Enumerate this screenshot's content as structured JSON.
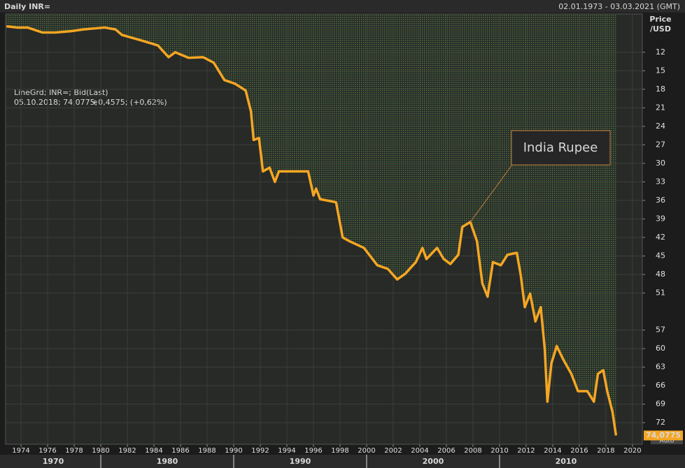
{
  "chart_data": {
    "type": "line",
    "title": "Daily INR=",
    "date_range": "02.01.1973 - 03.03.2021 (GMT)",
    "y_axis_label": [
      "Price",
      "/USD"
    ],
    "legend_lines": [
      [
        "LineGrd; INR=; Bid(Last)"
      ],
      [
        "05.10.2018; 74,0775;",
        "+0,4575; (+0,62%)"
      ]
    ],
    "annotation": "India Rupee",
    "scale_mode": "Auto",
    "color": "#f5a623",
    "y_inverted": true,
    "x": [
      1972.9,
      1973.7,
      1974.5,
      1975.6,
      1976.6,
      1977.7,
      1978.7,
      1980.3,
      1981.1,
      1981.6,
      1982.9,
      1984.3,
      1985.1,
      1985.6,
      1986.6,
      1987.7,
      1988.5,
      1989.3,
      1990.1,
      1990.9,
      1991.3,
      1991.5,
      1991.9,
      1992.2,
      1992.7,
      1993.1,
      1993.4,
      1995.6,
      1996.0,
      1996.2,
      1996.5,
      1997.7,
      1998.2,
      1998.7,
      1999.8,
      2000.8,
      2001.6,
      2002.3,
      2002.9,
      2003.7,
      2004.2,
      2004.5,
      2005.3,
      2005.8,
      2006.3,
      2006.9,
      2007.2,
      2007.8,
      2008.3,
      2008.7,
      2009.1,
      2009.5,
      2010.1,
      2010.6,
      2011.3,
      2011.6,
      2011.9,
      2012.3,
      2012.7,
      2013.1,
      2013.4,
      2013.6,
      2013.9,
      2014.3,
      2014.8,
      2015.4,
      2015.9,
      2016.6,
      2017.1,
      2017.4,
      2017.8,
      2018.1,
      2018.5,
      2018.76
    ],
    "values": [
      7.8,
      8.0,
      8.0,
      8.8,
      8.8,
      8.6,
      8.3,
      8.0,
      8.3,
      9.2,
      10.0,
      10.9,
      12.8,
      12.0,
      12.9,
      12.8,
      13.7,
      16.5,
      17.1,
      18.2,
      21.6,
      26.2,
      25.9,
      31.3,
      30.7,
      33.0,
      31.3,
      31.3,
      35.2,
      34.1,
      35.8,
      36.3,
      42.0,
      42.6,
      43.7,
      46.5,
      47.1,
      48.8,
      47.9,
      46.0,
      43.7,
      45.5,
      43.7,
      45.5,
      46.3,
      44.8,
      40.3,
      39.5,
      42.6,
      49.4,
      51.6,
      46.0,
      46.5,
      44.8,
      44.5,
      48.2,
      53.3,
      51.1,
      55.6,
      53.3,
      60.1,
      68.6,
      62.4,
      59.6,
      61.8,
      64.1,
      66.9,
      66.9,
      68.6,
      64.1,
      63.5,
      66.9,
      70.3,
      74.0775
    ],
    "value_labels": [
      null,
      null,
      null,
      null,
      null,
      null,
      null,
      null,
      null,
      null,
      null,
      null,
      null,
      null,
      null,
      null,
      null,
      null,
      null,
      null,
      null,
      null,
      null,
      null,
      null,
      null,
      null,
      null,
      null,
      null,
      null,
      null,
      null,
      null,
      null,
      null,
      null,
      null,
      null,
      null,
      null,
      null,
      null,
      null,
      null,
      null,
      null,
      null,
      null,
      null,
      null,
      null,
      null,
      null,
      null,
      null,
      null,
      null,
      null,
      null,
      null,
      null,
      null,
      null,
      null,
      null,
      null,
      null,
      null,
      null,
      null,
      null,
      null,
      "74,0775"
    ],
    "annotation_index": 47,
    "xlim": [
      1972.84,
      2020.74
    ],
    "xticks": [
      1974,
      1976,
      1978,
      1980,
      1982,
      1984,
      1986,
      1988,
      1990,
      1992,
      1994,
      1996,
      1998,
      2000,
      2002,
      2004,
      2006,
      2008,
      2010,
      2012,
      2014,
      2016,
      2018,
      2020
    ],
    "decades": [
      1970,
      1980,
      1990,
      2000,
      2010
    ],
    "ylim": [
      5.8,
      75.5
    ],
    "yticks": [
      12,
      15,
      18,
      21,
      24,
      27,
      30,
      33,
      36,
      39,
      42,
      45,
      48,
      51,
      57,
      60,
      63,
      66,
      69,
      72
    ],
    "grid": true
  }
}
